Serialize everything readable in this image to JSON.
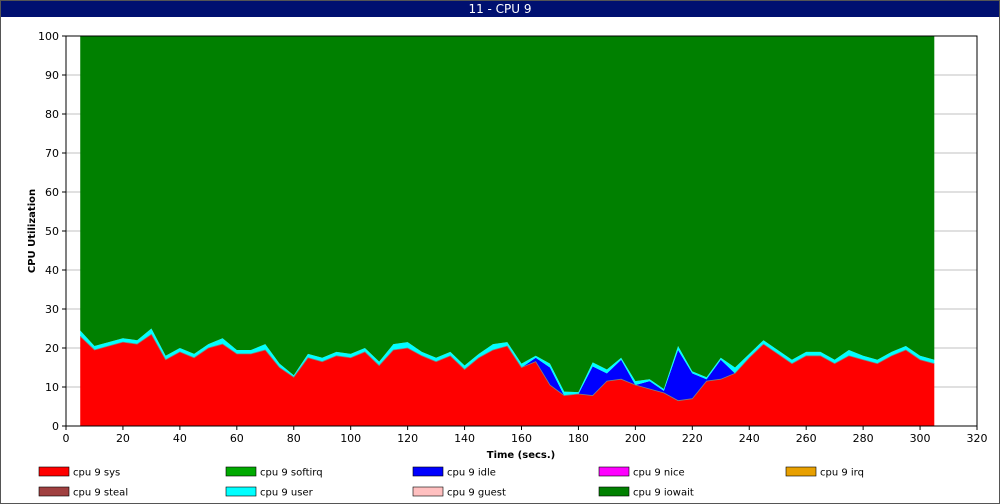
{
  "window": {
    "title": "11 - CPU 9"
  },
  "chart_data": {
    "type": "area",
    "stacked": true,
    "title": "",
    "xlabel": "Time (secs.)",
    "ylabel": "CPU Utilization",
    "xlim": [
      0,
      320
    ],
    "ylim": [
      0,
      100
    ],
    "x_ticks": [
      0,
      20,
      40,
      60,
      80,
      100,
      120,
      140,
      160,
      180,
      200,
      220,
      240,
      260,
      280,
      300,
      320
    ],
    "y_ticks": [
      0,
      10,
      20,
      30,
      40,
      50,
      60,
      70,
      80,
      90,
      100
    ],
    "grid": "horizontal",
    "legend_position": "bottom",
    "x": [
      5,
      10,
      15,
      20,
      25,
      30,
      35,
      40,
      45,
      50,
      55,
      60,
      65,
      70,
      75,
      80,
      85,
      90,
      95,
      100,
      105,
      110,
      115,
      120,
      125,
      130,
      135,
      140,
      145,
      150,
      155,
      160,
      165,
      170,
      175,
      180,
      185,
      190,
      195,
      200,
      205,
      210,
      215,
      220,
      225,
      230,
      235,
      240,
      245,
      250,
      255,
      260,
      265,
      270,
      275,
      280,
      285,
      290,
      295,
      300,
      305
    ],
    "series": [
      {
        "name": "cpu 9 sys",
        "color": "#ff0000",
        "values": [
          23,
          19.5,
          20.5,
          21.5,
          21,
          23.5,
          17,
          19,
          17.5,
          20,
          21,
          18.5,
          18.5,
          19.5,
          15,
          12.5,
          17.5,
          16.5,
          18,
          17.5,
          19,
          15.5,
          19.5,
          20,
          18,
          16.5,
          18,
          14.5,
          17.5,
          19.5,
          20.5,
          15,
          16.5,
          10.5,
          7.8,
          8.2,
          7.8,
          11.5,
          12,
          10.5,
          9.5,
          8.5,
          6.5,
          7,
          11.5,
          12,
          13.5,
          17.5,
          21,
          18.5,
          16,
          18,
          18,
          16,
          18,
          17,
          16,
          18,
          19.5,
          17,
          16
        ]
      },
      {
        "name": "cpu 9 softirq",
        "color": "#00aa00",
        "values": [
          0,
          0,
          0,
          0,
          0,
          0,
          0,
          0,
          0,
          0,
          0,
          0,
          0,
          0,
          0,
          0,
          0,
          0,
          0,
          0,
          0,
          0,
          0,
          0,
          0,
          0,
          0,
          0,
          0,
          0,
          0,
          0,
          0,
          0,
          0,
          0,
          0,
          0,
          0,
          0,
          0,
          0,
          0,
          0,
          0,
          0,
          0,
          0,
          0,
          0,
          0,
          0,
          0,
          0,
          0,
          0,
          0,
          0,
          0,
          0,
          0
        ]
      },
      {
        "name": "cpu 9 idle",
        "color": "#0000ff",
        "values": [
          0,
          0,
          0,
          0,
          0,
          0,
          0,
          0,
          0,
          0,
          0,
          0,
          0,
          0,
          0,
          0,
          0,
          0,
          0,
          0,
          0,
          0,
          0,
          0,
          0,
          0,
          0,
          0,
          0,
          0,
          0,
          0,
          1,
          4.5,
          0,
          0,
          7.5,
          2,
          5,
          0,
          2,
          0.5,
          13,
          6.5,
          0.5,
          5,
          0,
          0,
          0,
          0,
          0,
          0,
          0,
          0,
          0,
          0,
          0,
          0,
          0,
          0,
          0
        ]
      },
      {
        "name": "cpu 9 nice",
        "color": "#ff00ff",
        "values": [
          0,
          0,
          0,
          0,
          0,
          0,
          0,
          0,
          0,
          0,
          0,
          0,
          0,
          0,
          0,
          0,
          0,
          0,
          0,
          0,
          0,
          0,
          0,
          0,
          0,
          0,
          0,
          0,
          0,
          0,
          0,
          0,
          0,
          0,
          0,
          0,
          0,
          0,
          0,
          0,
          0,
          0,
          0,
          0,
          0,
          0,
          0,
          0,
          0,
          0,
          0,
          0,
          0,
          0,
          0,
          0,
          0,
          0,
          0,
          0,
          0
        ]
      },
      {
        "name": "cpu 9 irq",
        "color": "#e8a000",
        "values": [
          0,
          0,
          0,
          0,
          0,
          0,
          0,
          0,
          0,
          0,
          0,
          0,
          0,
          0,
          0,
          0,
          0,
          0,
          0,
          0,
          0,
          0,
          0,
          0,
          0,
          0,
          0,
          0,
          0,
          0,
          0,
          0,
          0,
          0,
          0,
          0,
          0,
          0,
          0,
          0,
          0,
          0,
          0,
          0,
          0,
          0,
          0,
          0,
          0,
          0,
          0,
          0,
          0,
          0,
          0,
          0,
          0,
          0,
          0,
          0,
          0
        ]
      },
      {
        "name": "cpu 9 steal",
        "color": "#a04040",
        "values": [
          0,
          0,
          0,
          0,
          0,
          0,
          0,
          0,
          0,
          0,
          0,
          0,
          0,
          0,
          0,
          0,
          0,
          0,
          0,
          0,
          0,
          0,
          0,
          0,
          0,
          0,
          0,
          0,
          0,
          0,
          0,
          0,
          0,
          0,
          0,
          0,
          0,
          0,
          0,
          0,
          0,
          0,
          0,
          0,
          0,
          0,
          0,
          0,
          0,
          0,
          0,
          0,
          0,
          0,
          0,
          0,
          0,
          0,
          0,
          0,
          0
        ]
      },
      {
        "name": "cpu 9 user",
        "color": "#00ffff",
        "values": [
          1.5,
          1,
          1,
          1,
          1,
          1.5,
          1,
          1,
          1,
          1,
          1.5,
          1,
          1,
          1.5,
          1,
          0.5,
          1,
          1,
          1,
          1,
          1,
          1,
          1.5,
          1.5,
          1,
          1,
          1,
          1,
          1,
          1.5,
          1,
          1,
          0.5,
          1,
          1,
          0.5,
          1,
          1,
          0.5,
          1,
          0.5,
          0.5,
          1,
          0.5,
          0.5,
          0.5,
          1.5,
          1,
          1,
          1,
          1,
          1,
          1,
          1,
          1.5,
          1,
          1,
          1,
          1,
          1,
          1
        ]
      },
      {
        "name": "cpu 9 guest",
        "color": "#ffc0c0",
        "values": [
          0,
          0,
          0,
          0,
          0,
          0,
          0,
          0,
          0,
          0,
          0,
          0,
          0,
          0,
          0,
          0,
          0,
          0,
          0,
          0,
          0,
          0,
          0,
          0,
          0,
          0,
          0,
          0,
          0,
          0,
          0,
          0,
          0,
          0,
          0,
          0,
          0,
          0,
          0,
          0,
          0,
          0,
          0,
          0,
          0,
          0,
          0,
          0,
          0,
          0,
          0,
          0,
          0,
          0,
          0,
          0,
          0,
          0,
          0,
          0,
          0
        ]
      },
      {
        "name": "cpu 9 iowait",
        "color": "#008000",
        "values": [
          75.5,
          79.5,
          78.5,
          77.5,
          78,
          75,
          82,
          80,
          81.5,
          79,
          77.5,
          80.5,
          80.5,
          79,
          84,
          87,
          81.5,
          82.5,
          81,
          81.5,
          80,
          83.5,
          79,
          78.5,
          81,
          82.5,
          81,
          84.5,
          81.5,
          79,
          78.5,
          84,
          82,
          84,
          91.2,
          91.3,
          83.7,
          85.5,
          82.5,
          88.5,
          88,
          90.5,
          79.5,
          86,
          87.5,
          82.5,
          85,
          81.5,
          78,
          80.5,
          83,
          81,
          81,
          83,
          80.5,
          82,
          83,
          81,
          79.5,
          82,
          83
        ]
      }
    ]
  }
}
